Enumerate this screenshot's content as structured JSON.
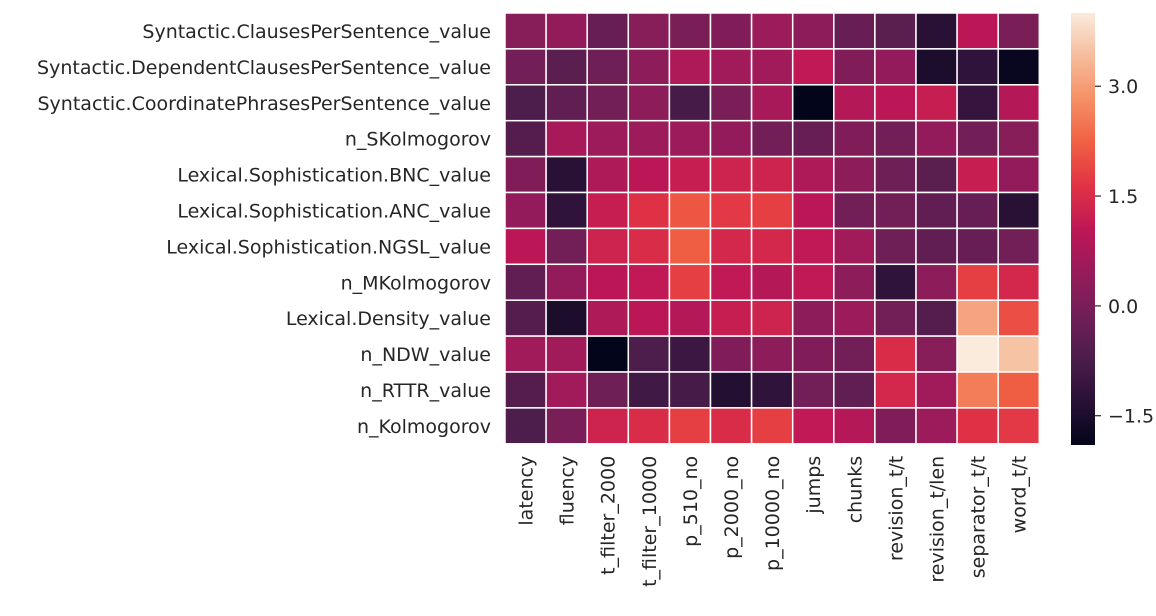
{
  "chart_data": {
    "type": "heatmap",
    "title": "",
    "xlabel": "",
    "ylabel": "",
    "rows": [
      "Syntactic.ClausesPerSentence_value",
      "Syntactic.DependentClausesPerSentence_value",
      "Syntactic.CoordinatePhrasesPerSentence_value",
      "n_SKolmogorov",
      "Lexical.Sophistication.BNC_value",
      "Lexical.Sophistication.ANC_value",
      "Lexical.Sophistication.NGSL_value",
      "n_MKolmogorov",
      "Lexical.Density_value",
      "n_NDW_value",
      "n_RTTR_value",
      "n_Kolmogorov"
    ],
    "columns": [
      "latency",
      "fluency",
      "t_filter_2000",
      "t_filter_10000",
      "p_510_no",
      "p_2000_no",
      "p_10000_no",
      "jumps",
      "chunks",
      "revision_t/t",
      "revision_t/len",
      "separator_t/t",
      "word_t/t"
    ],
    "values": [
      [
        0.2,
        0.4,
        -0.3,
        0.2,
        0.0,
        0.1,
        0.5,
        0.3,
        -0.3,
        -0.5,
        -1.3,
        1.0,
        0.0
      ],
      [
        -0.1,
        -0.5,
        -0.2,
        0.3,
        0.8,
        0.6,
        0.6,
        1.1,
        0.1,
        0.4,
        -1.5,
        -1.2,
        -1.8
      ],
      [
        -0.7,
        -0.4,
        -0.1,
        0.3,
        -0.8,
        0.0,
        0.7,
        -1.9,
        0.9,
        1.0,
        1.2,
        -1.1,
        0.9
      ],
      [
        -0.6,
        0.7,
        0.5,
        0.5,
        0.5,
        0.4,
        -0.1,
        -0.3,
        0.1,
        -0.1,
        0.4,
        -0.1,
        0.2
      ],
      [
        0.1,
        -1.3,
        0.8,
        1.0,
        1.2,
        1.3,
        1.3,
        0.8,
        0.3,
        -0.2,
        -0.5,
        1.2,
        0.4
      ],
      [
        0.4,
        -1.2,
        1.2,
        1.6,
        2.1,
        1.7,
        1.8,
        1.0,
        -0.1,
        -0.1,
        -0.4,
        -0.3,
        -1.3
      ],
      [
        1.0,
        -0.1,
        1.3,
        1.5,
        2.2,
        1.4,
        1.4,
        1.1,
        0.6,
        -0.2,
        -0.4,
        -0.3,
        -0.1
      ],
      [
        -0.4,
        0.4,
        1.0,
        1.1,
        1.8,
        1.1,
        0.9,
        1.1,
        0.3,
        -1.2,
        0.3,
        1.8,
        1.4
      ],
      [
        -0.6,
        -1.5,
        0.8,
        1.0,
        0.9,
        1.2,
        1.3,
        0.3,
        0.5,
        -0.1,
        -0.6,
        3.1,
        2.0
      ],
      [
        0.6,
        0.6,
        -1.9,
        -0.7,
        -1.0,
        0.1,
        0.3,
        0.1,
        -0.1,
        1.5,
        0.2,
        4.0,
        3.5
      ],
      [
        -0.6,
        0.6,
        -0.2,
        -0.9,
        -0.8,
        -1.4,
        -1.2,
        -0.1,
        -0.4,
        1.4,
        0.6,
        2.6,
        2.2
      ],
      [
        -0.7,
        0.0,
        1.3,
        1.5,
        1.8,
        1.5,
        1.8,
        1.1,
        0.9,
        0.1,
        0.5,
        1.6,
        1.7
      ]
    ],
    "colormap": "rocket",
    "vmin": -1.9,
    "vmax": 4.0,
    "colorbar_ticks": [
      {
        "value": 3.0,
        "label": "3.0"
      },
      {
        "value": 1.5,
        "label": "1.5"
      },
      {
        "value": 0.0,
        "label": "0.0"
      },
      {
        "value": -1.5,
        "label": "−1.5"
      }
    ],
    "cell_border_color": "#ffffff",
    "grid": false
  }
}
